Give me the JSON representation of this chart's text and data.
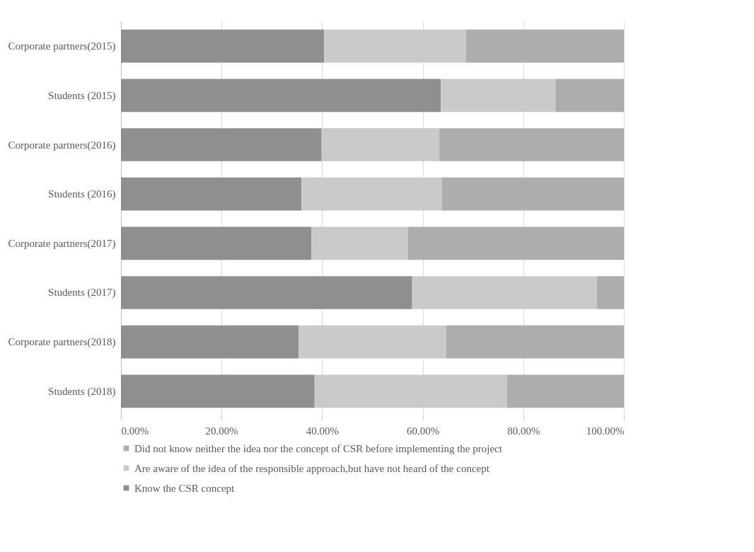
{
  "chart_data": {
    "type": "bar",
    "orientation": "horizontal",
    "stacked": true,
    "categories": [
      "Corporate partners(2015)",
      "Students (2015)",
      "Corporate partners(2016)",
      "Students (2016)",
      "Corporate partners(2017)",
      "Students (2017)",
      "Corporate partners(2018)",
      "Students (2018)"
    ],
    "series": [
      {
        "name": "Know the CSR concept",
        "color": "#8f8f8f",
        "values": [
          40.4,
          63.6,
          39.9,
          35.9,
          37.9,
          57.9,
          35.3,
          38.5
        ]
      },
      {
        "name": "Are aware of the idea of the responsible approach,but have not heard of the concept",
        "color": "#cacaca",
        "values": [
          28.2,
          22.8,
          23.4,
          27.9,
          19.2,
          36.7,
          29.4,
          38.3
        ]
      },
      {
        "name": "Did not know neither the idea nor the concept of CSR before implementing  the project",
        "color": "#adadad",
        "values": [
          31.4,
          13.6,
          36.7,
          36.2,
          42.9,
          5.4,
          35.3,
          23.2
        ]
      }
    ],
    "xlim": [
      0,
      100
    ],
    "xticks": [
      {
        "value": 0,
        "label": "0.00%"
      },
      {
        "value": 20,
        "label": "20.00%"
      },
      {
        "value": 40,
        "label": "40.00%"
      },
      {
        "value": 60,
        "label": "60.00%"
      },
      {
        "value": 80,
        "label": "80.00%"
      },
      {
        "value": 100,
        "label": "100.00%"
      }
    ],
    "grid": "x",
    "legend": "bottom"
  }
}
